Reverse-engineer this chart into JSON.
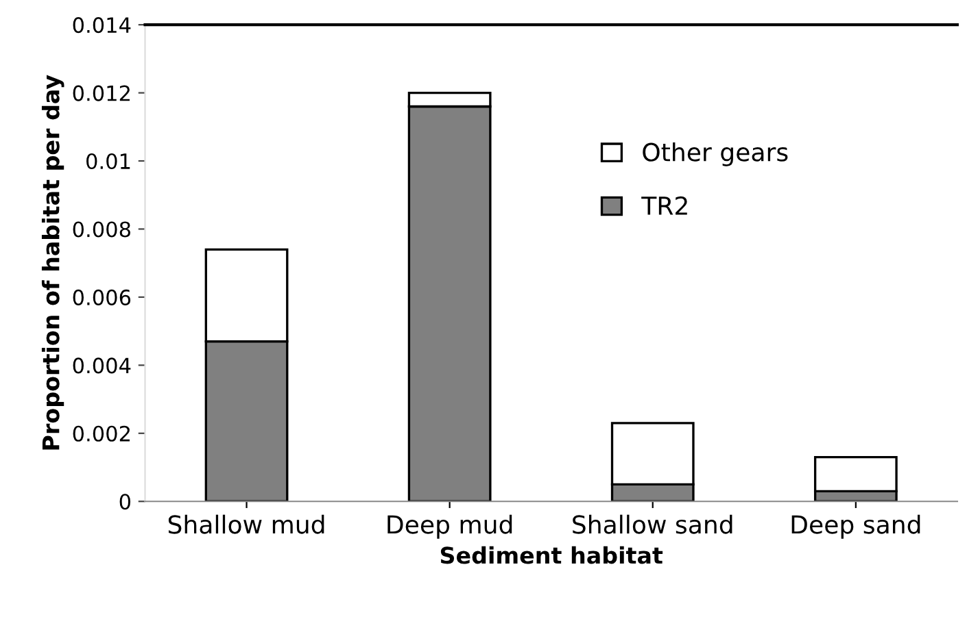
{
  "chart_data": {
    "type": "bar",
    "stacked": true,
    "xlabel": "Sediment habitat",
    "ylabel": "Proportion of habitat per day",
    "categories": [
      "Shallow mud",
      "Deep mud",
      "Shallow sand",
      "Deep sand"
    ],
    "series": [
      {
        "name": "TR2",
        "color": "#808080",
        "values": [
          0.0047,
          0.0116,
          0.0005,
          0.0003
        ]
      },
      {
        "name": "Other gears",
        "color": "#ffffff",
        "values": [
          0.0027,
          0.0004,
          0.0018,
          0.001
        ]
      }
    ],
    "ylim": [
      0,
      0.014
    ],
    "yticks": [
      0,
      0.002,
      0.004,
      0.006,
      0.008,
      0.01,
      0.012,
      0.014
    ],
    "legend": "top right",
    "grid": false
  }
}
